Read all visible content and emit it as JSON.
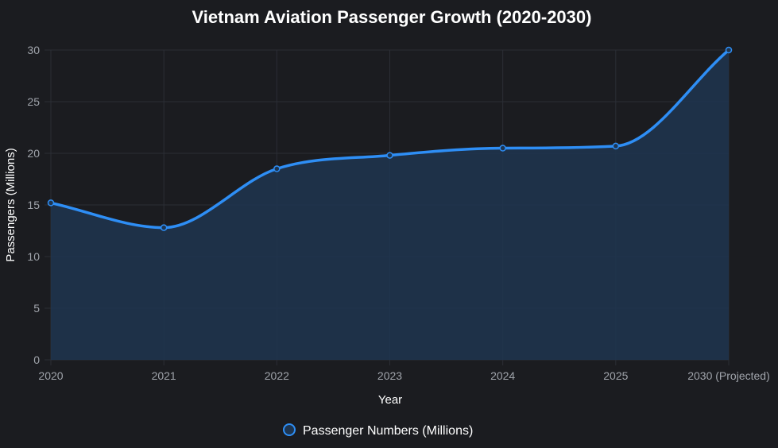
{
  "chart_data": {
    "type": "area",
    "title": "Vietnam Aviation Passenger Growth (2020-2030)",
    "xlabel": "Year",
    "ylabel": "Passengers (Millions)",
    "categories": [
      "2020",
      "2021",
      "2022",
      "2023",
      "2024",
      "2025",
      "2030 (Projected)"
    ],
    "series": [
      {
        "name": "Passenger Numbers (Millions)",
        "values": [
          15.2,
          12.8,
          18.5,
          19.8,
          20.5,
          20.7,
          30.0
        ]
      }
    ],
    "ylim": [
      0,
      30
    ],
    "yticks": [
      0,
      5,
      10,
      15,
      20,
      25,
      30
    ],
    "grid": true,
    "legend_position": "bottom",
    "colors": {
      "background": "#1b1c20",
      "line": "#2e8ef5",
      "fill": "#1e3550",
      "grid": "#2b2e35",
      "tick_text": "#a0a4ab",
      "text": "#ffffff"
    }
  }
}
